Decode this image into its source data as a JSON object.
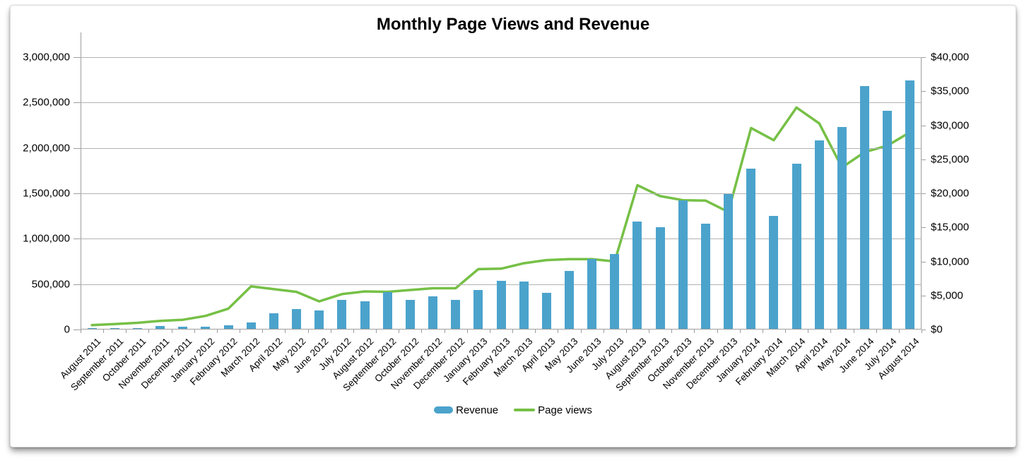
{
  "chart_data": {
    "type": "combo-bar-line",
    "title": "Monthly Page Views and Revenue",
    "categories": [
      "August 2011",
      "September 2011",
      "October 2011",
      "November 2011",
      "December 2011",
      "January 2012",
      "February 2012",
      "March 2012",
      "April 2012",
      "May 2012",
      "June 2012",
      "July 2012",
      "August 2012",
      "September 2012",
      "October 2012",
      "November 2012",
      "December 2012",
      "January 2013",
      "February 2013",
      "March 2013",
      "April 2013",
      "May 2013",
      "June 2013",
      "July 2013",
      "August 2013",
      "September 2013",
      "October 2013",
      "November 2013",
      "December 2013",
      "January 2014",
      "February 2014",
      "March 2014",
      "April 2014",
      "May 2014",
      "June 2014",
      "July 2014",
      "August 2014"
    ],
    "series": [
      {
        "name": "Revenue",
        "type": "bar",
        "axis": "right",
        "color": "#4BA3CC",
        "values": [
          150,
          130,
          150,
          380,
          280,
          270,
          520,
          970,
          2250,
          2900,
          2740,
          4260,
          4090,
          5400,
          4260,
          4750,
          4260,
          5690,
          7000,
          6950,
          5280,
          8460,
          10260,
          11030,
          15800,
          14900,
          18900,
          15400,
          19800,
          23500,
          16560,
          24270,
          27630,
          29640,
          35630,
          32060,
          36530
        ]
      },
      {
        "name": "Page views",
        "type": "line",
        "axis": "left",
        "color": "#76C046",
        "values": [
          48000,
          61000,
          74000,
          95000,
          107000,
          150000,
          230000,
          475000,
          445000,
          415000,
          310000,
          390000,
          420000,
          415000,
          435000,
          455000,
          455000,
          665000,
          670000,
          730000,
          765000,
          775000,
          775000,
          750000,
          1590000,
          1470000,
          1425000,
          1420000,
          1295000,
          2220000,
          2085000,
          2445000,
          2270000,
          1785000,
          1955000,
          2025000,
          2175000
        ]
      }
    ],
    "axes": {
      "left": {
        "min": 0,
        "max": 3000000,
        "step": 500000,
        "tick_labels": [
          "0",
          "500,000",
          "1,000,000",
          "1,500,000",
          "2,000,000",
          "2,500,000",
          "3,000,000"
        ]
      },
      "right": {
        "min": 0,
        "max": 40000,
        "step": 5000,
        "tick_labels": [
          "$0",
          "$5,000",
          "$10,000",
          "$15,000",
          "$20,000",
          "$25,000",
          "$30,000",
          "$35,000",
          "$40,000"
        ]
      }
    },
    "legend": {
      "position": "bottom",
      "entries": [
        "Revenue",
        "Page views"
      ]
    },
    "grid": "horizontal",
    "styles": {
      "gridline_color": "#B2B2B2",
      "axis_color": "#9E9E9E",
      "text_color": "#000000"
    }
  }
}
